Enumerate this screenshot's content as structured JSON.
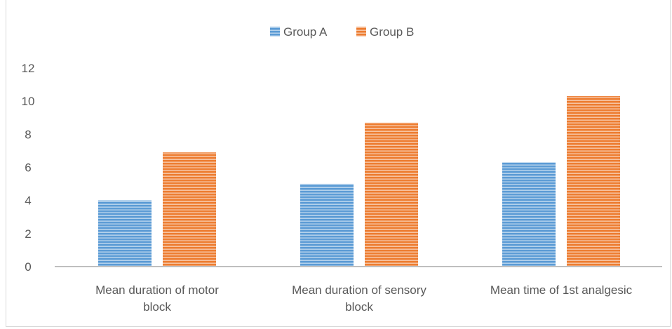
{
  "chart_data": {
    "type": "bar",
    "title": "",
    "xlabel": "",
    "ylabel": "",
    "categories": [
      [
        "Mean duration of motor",
        "block"
      ],
      [
        "Mean duration of sensory",
        "block"
      ],
      [
        "Mean time of 1st analgesic"
      ]
    ],
    "series": [
      {
        "name": "Group A",
        "color": "#5b9bd5",
        "values": [
          4.0,
          5.0,
          6.3
        ]
      },
      {
        "name": "Group B",
        "color": "#ed7d31",
        "values": [
          6.9,
          8.7,
          10.3
        ]
      }
    ],
    "ylim": [
      0,
      12
    ],
    "yticks": [
      0,
      2,
      4,
      6,
      8,
      10,
      12
    ],
    "grid": false,
    "legend": "top-center",
    "bar_fill": "horizontal-stripes"
  }
}
